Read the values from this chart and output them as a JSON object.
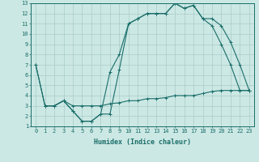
{
  "xlabel": "Humidex (Indice chaleur)",
  "xlim": [
    -0.5,
    23.5
  ],
  "ylim": [
    1,
    13
  ],
  "xticks": [
    0,
    1,
    2,
    3,
    4,
    5,
    6,
    7,
    8,
    9,
    10,
    11,
    12,
    13,
    14,
    15,
    16,
    17,
    18,
    19,
    20,
    21,
    22,
    23
  ],
  "yticks": [
    1,
    2,
    3,
    4,
    5,
    6,
    7,
    8,
    9,
    10,
    11,
    12,
    13
  ],
  "background_color": "#cce8e4",
  "grid_color": "#a8ccc8",
  "line_color": "#1a6e6a",
  "line1_x": [
    0,
    1,
    2,
    3,
    4,
    5,
    6,
    7,
    8,
    9,
    10,
    11,
    12,
    13,
    14,
    15,
    16,
    17,
    18,
    19,
    20,
    21,
    22,
    23
  ],
  "line1_y": [
    7,
    3,
    3,
    3.5,
    2.5,
    1.5,
    1.5,
    2.2,
    6.3,
    8.0,
    11,
    11.5,
    12,
    12,
    12,
    13,
    12.5,
    12.8,
    11.5,
    10.8,
    9,
    7,
    4.5,
    4.5
  ],
  "line2_x": [
    0,
    1,
    2,
    3,
    4,
    5,
    6,
    7,
    8,
    9,
    10,
    11,
    12,
    13,
    14,
    15,
    16,
    17,
    18,
    19,
    20,
    21,
    22,
    23
  ],
  "line2_y": [
    7,
    3,
    3,
    3.5,
    2.5,
    1.5,
    1.5,
    2.2,
    2.2,
    6.5,
    11,
    11.5,
    12,
    12,
    12,
    13,
    12.5,
    12.8,
    11.5,
    11.5,
    10.8,
    9.2,
    7,
    4.5
  ],
  "line3_x": [
    1,
    2,
    3,
    4,
    5,
    6,
    7,
    8,
    9,
    10,
    11,
    12,
    13,
    14,
    15,
    16,
    17,
    18,
    19,
    20,
    21,
    22,
    23
  ],
  "line3_y": [
    3,
    3,
    3.5,
    3.0,
    3.0,
    3.0,
    3.0,
    3.2,
    3.3,
    3.5,
    3.5,
    3.7,
    3.7,
    3.8,
    4.0,
    4.0,
    4.0,
    4.2,
    4.4,
    4.5,
    4.5,
    4.5,
    4.5
  ]
}
